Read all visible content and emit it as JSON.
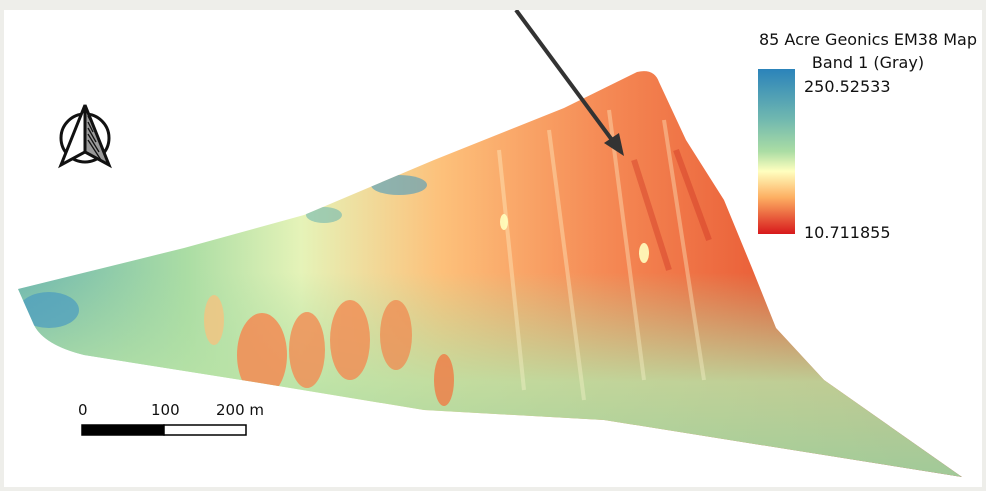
{
  "legend": {
    "title": "85 Acre Geonics EM38 Map",
    "band": "Band 1 (Gray)",
    "max_label": "250.52533",
    "min_label": "10.711855",
    "max_value": 250.52533,
    "min_value": 10.711855,
    "ramp_colors": [
      "#2b83ba",
      "#6fb7b0",
      "#abdda4",
      "#ffffbf",
      "#fdae61",
      "#f07045",
      "#d7191c"
    ]
  },
  "scale_bar": {
    "labels": [
      "0",
      "100",
      "200 m"
    ]
  },
  "north_arrow": {
    "icon": "north-arrow-icon"
  },
  "annotation_arrow": {
    "icon": "pointer-arrow-icon"
  },
  "colors": {
    "background": "#eeeeea",
    "canvas": "#ffffff",
    "low": "#d7191c",
    "mid": "#ffffbf",
    "high": "#2b83ba"
  }
}
